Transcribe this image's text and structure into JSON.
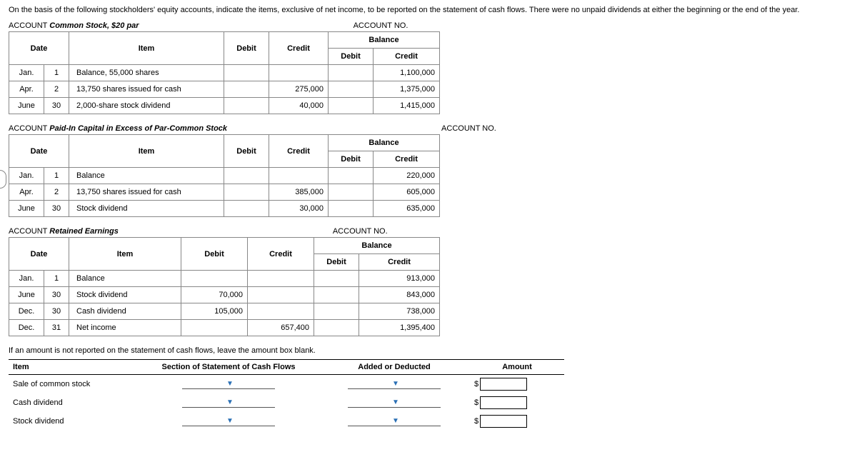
{
  "intro": "On the basis of the following stockholders' equity accounts, indicate the items, exclusive of net income, to be reported on the statement of cash flows. There were no unpaid dividends at either the beginning or the end of the year.",
  "accounts": [
    {
      "label": "ACCOUNT",
      "name": "Common Stock, $20 par",
      "no_label": "ACCOUNT NO.",
      "col_widths": {
        "month": 36,
        "day": 22,
        "item": 200,
        "debit": 50,
        "credit": 70,
        "bdebit": 50,
        "bcredit": 80
      },
      "headers": {
        "date": "Date",
        "item": "Item",
        "debit": "Debit",
        "credit": "Credit",
        "balance": "Balance",
        "bdebit": "Debit",
        "bcredit": "Credit"
      },
      "rows": [
        {
          "m": "Jan.",
          "d": "1",
          "item": "Balance, 55,000 shares",
          "debit": "",
          "credit": "",
          "bdebit": "",
          "bcredit": "1,100,000"
        },
        {
          "m": "Apr.",
          "d": "2",
          "item": "13,750 shares issued for cash",
          "debit": "",
          "credit": "275,000",
          "bdebit": "",
          "bcredit": "1,375,000"
        },
        {
          "m": "June",
          "d": "30",
          "item": "2,000-share stock dividend",
          "debit": "",
          "credit": "40,000",
          "bdebit": "",
          "bcredit": "1,415,000"
        }
      ]
    },
    {
      "label": "ACCOUNT",
      "name": "Paid-In Capital in Excess of Par-Common Stock",
      "no_label": "ACCOUNT NO.",
      "col_widths": {
        "month": 36,
        "day": 22,
        "item": 200,
        "debit": 50,
        "credit": 70,
        "bdebit": 50,
        "bcredit": 80
      },
      "headers": {
        "date": "Date",
        "item": "Item",
        "debit": "Debit",
        "credit": "Credit",
        "balance": "Balance",
        "bdebit": "Debit",
        "bcredit": "Credit"
      },
      "rows": [
        {
          "m": "Jan.",
          "d": "1",
          "item": "Balance",
          "debit": "",
          "credit": "",
          "bdebit": "",
          "bcredit": "220,000"
        },
        {
          "m": "Apr.",
          "d": "2",
          "item": "13,750 shares issued for cash",
          "debit": "",
          "credit": "385,000",
          "bdebit": "",
          "bcredit": "605,000"
        },
        {
          "m": "June",
          "d": "30",
          "item": "Stock dividend",
          "debit": "",
          "credit": "30,000",
          "bdebit": "",
          "bcredit": "635,000"
        }
      ]
    },
    {
      "label": "ACCOUNT",
      "name": "Retained Earnings",
      "no_label": "ACCOUNT NO.",
      "col_widths": {
        "month": 36,
        "day": 22,
        "item": 140,
        "debit": 80,
        "credit": 80,
        "bdebit": 50,
        "bcredit": 100
      },
      "headers": {
        "date": "Date",
        "item": "Item",
        "debit": "Debit",
        "credit": "Credit",
        "balance": "Balance",
        "bdebit": "Debit",
        "bcredit": "Credit"
      },
      "rows": [
        {
          "m": "Jan.",
          "d": "1",
          "item": "Balance",
          "debit": "",
          "credit": "",
          "bdebit": "",
          "bcredit": "913,000"
        },
        {
          "m": "June",
          "d": "30",
          "item": "Stock dividend",
          "debit": "70,000",
          "credit": "",
          "bdebit": "",
          "bcredit": "843,000"
        },
        {
          "m": "Dec.",
          "d": "30",
          "item": "Cash dividend",
          "debit": "105,000",
          "credit": "",
          "bdebit": "",
          "bcredit": "738,000"
        },
        {
          "m": "Dec.",
          "d": "31",
          "item": "Net income",
          "debit": "",
          "credit": "657,400",
          "bdebit": "",
          "bcredit": "1,395,400"
        }
      ]
    }
  ],
  "note": "If an amount is not reported on the statement of cash flows, leave the amount box blank.",
  "answer_table": {
    "headers": {
      "item": "Item",
      "section": "Section of Statement of Cash Flows",
      "added": "Added or Deducted",
      "amount": "Amount"
    },
    "col_widths": {
      "item": 170,
      "section": 240,
      "added": 200,
      "amount": 120
    },
    "rows": [
      {
        "item": "Sale of common stock"
      },
      {
        "item": "Cash dividend"
      },
      {
        "item": "Stock dividend"
      }
    ],
    "dollar": "$"
  }
}
